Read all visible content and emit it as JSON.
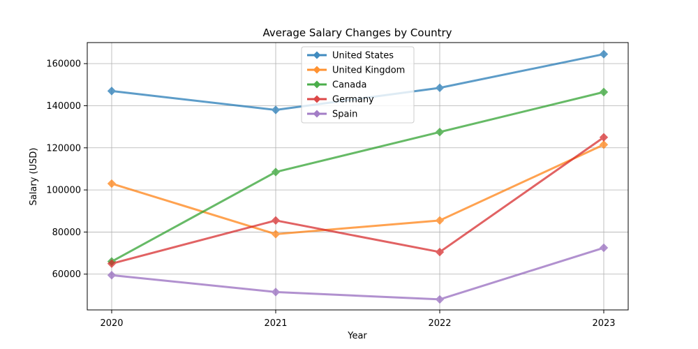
{
  "chart_data": {
    "type": "line",
    "title": "Average Salary Changes by Country",
    "xlabel": "Year",
    "ylabel": "Salary (USD)",
    "categories": [
      "2020",
      "2021",
      "2022",
      "2023"
    ],
    "ylim": [
      43000,
      170000
    ],
    "yticks": [
      60000,
      80000,
      100000,
      120000,
      140000,
      160000
    ],
    "grid": true,
    "legend_position": "top-center",
    "marker": "diamond",
    "series": [
      {
        "name": "United States",
        "color": "#1f77b4",
        "values": [
          147000,
          138000,
          148500,
          164500
        ]
      },
      {
        "name": "United Kingdom",
        "color": "#ff7f0e",
        "values": [
          103000,
          79000,
          85500,
          121500
        ]
      },
      {
        "name": "Canada",
        "color": "#2ca02c",
        "values": [
          66000,
          108500,
          127500,
          146500
        ]
      },
      {
        "name": "Germany",
        "color": "#d62728",
        "values": [
          65000,
          85500,
          70500,
          125000
        ]
      },
      {
        "name": "Spain",
        "color": "#9467bd",
        "values": [
          59500,
          51500,
          48000,
          72500
        ]
      }
    ]
  }
}
